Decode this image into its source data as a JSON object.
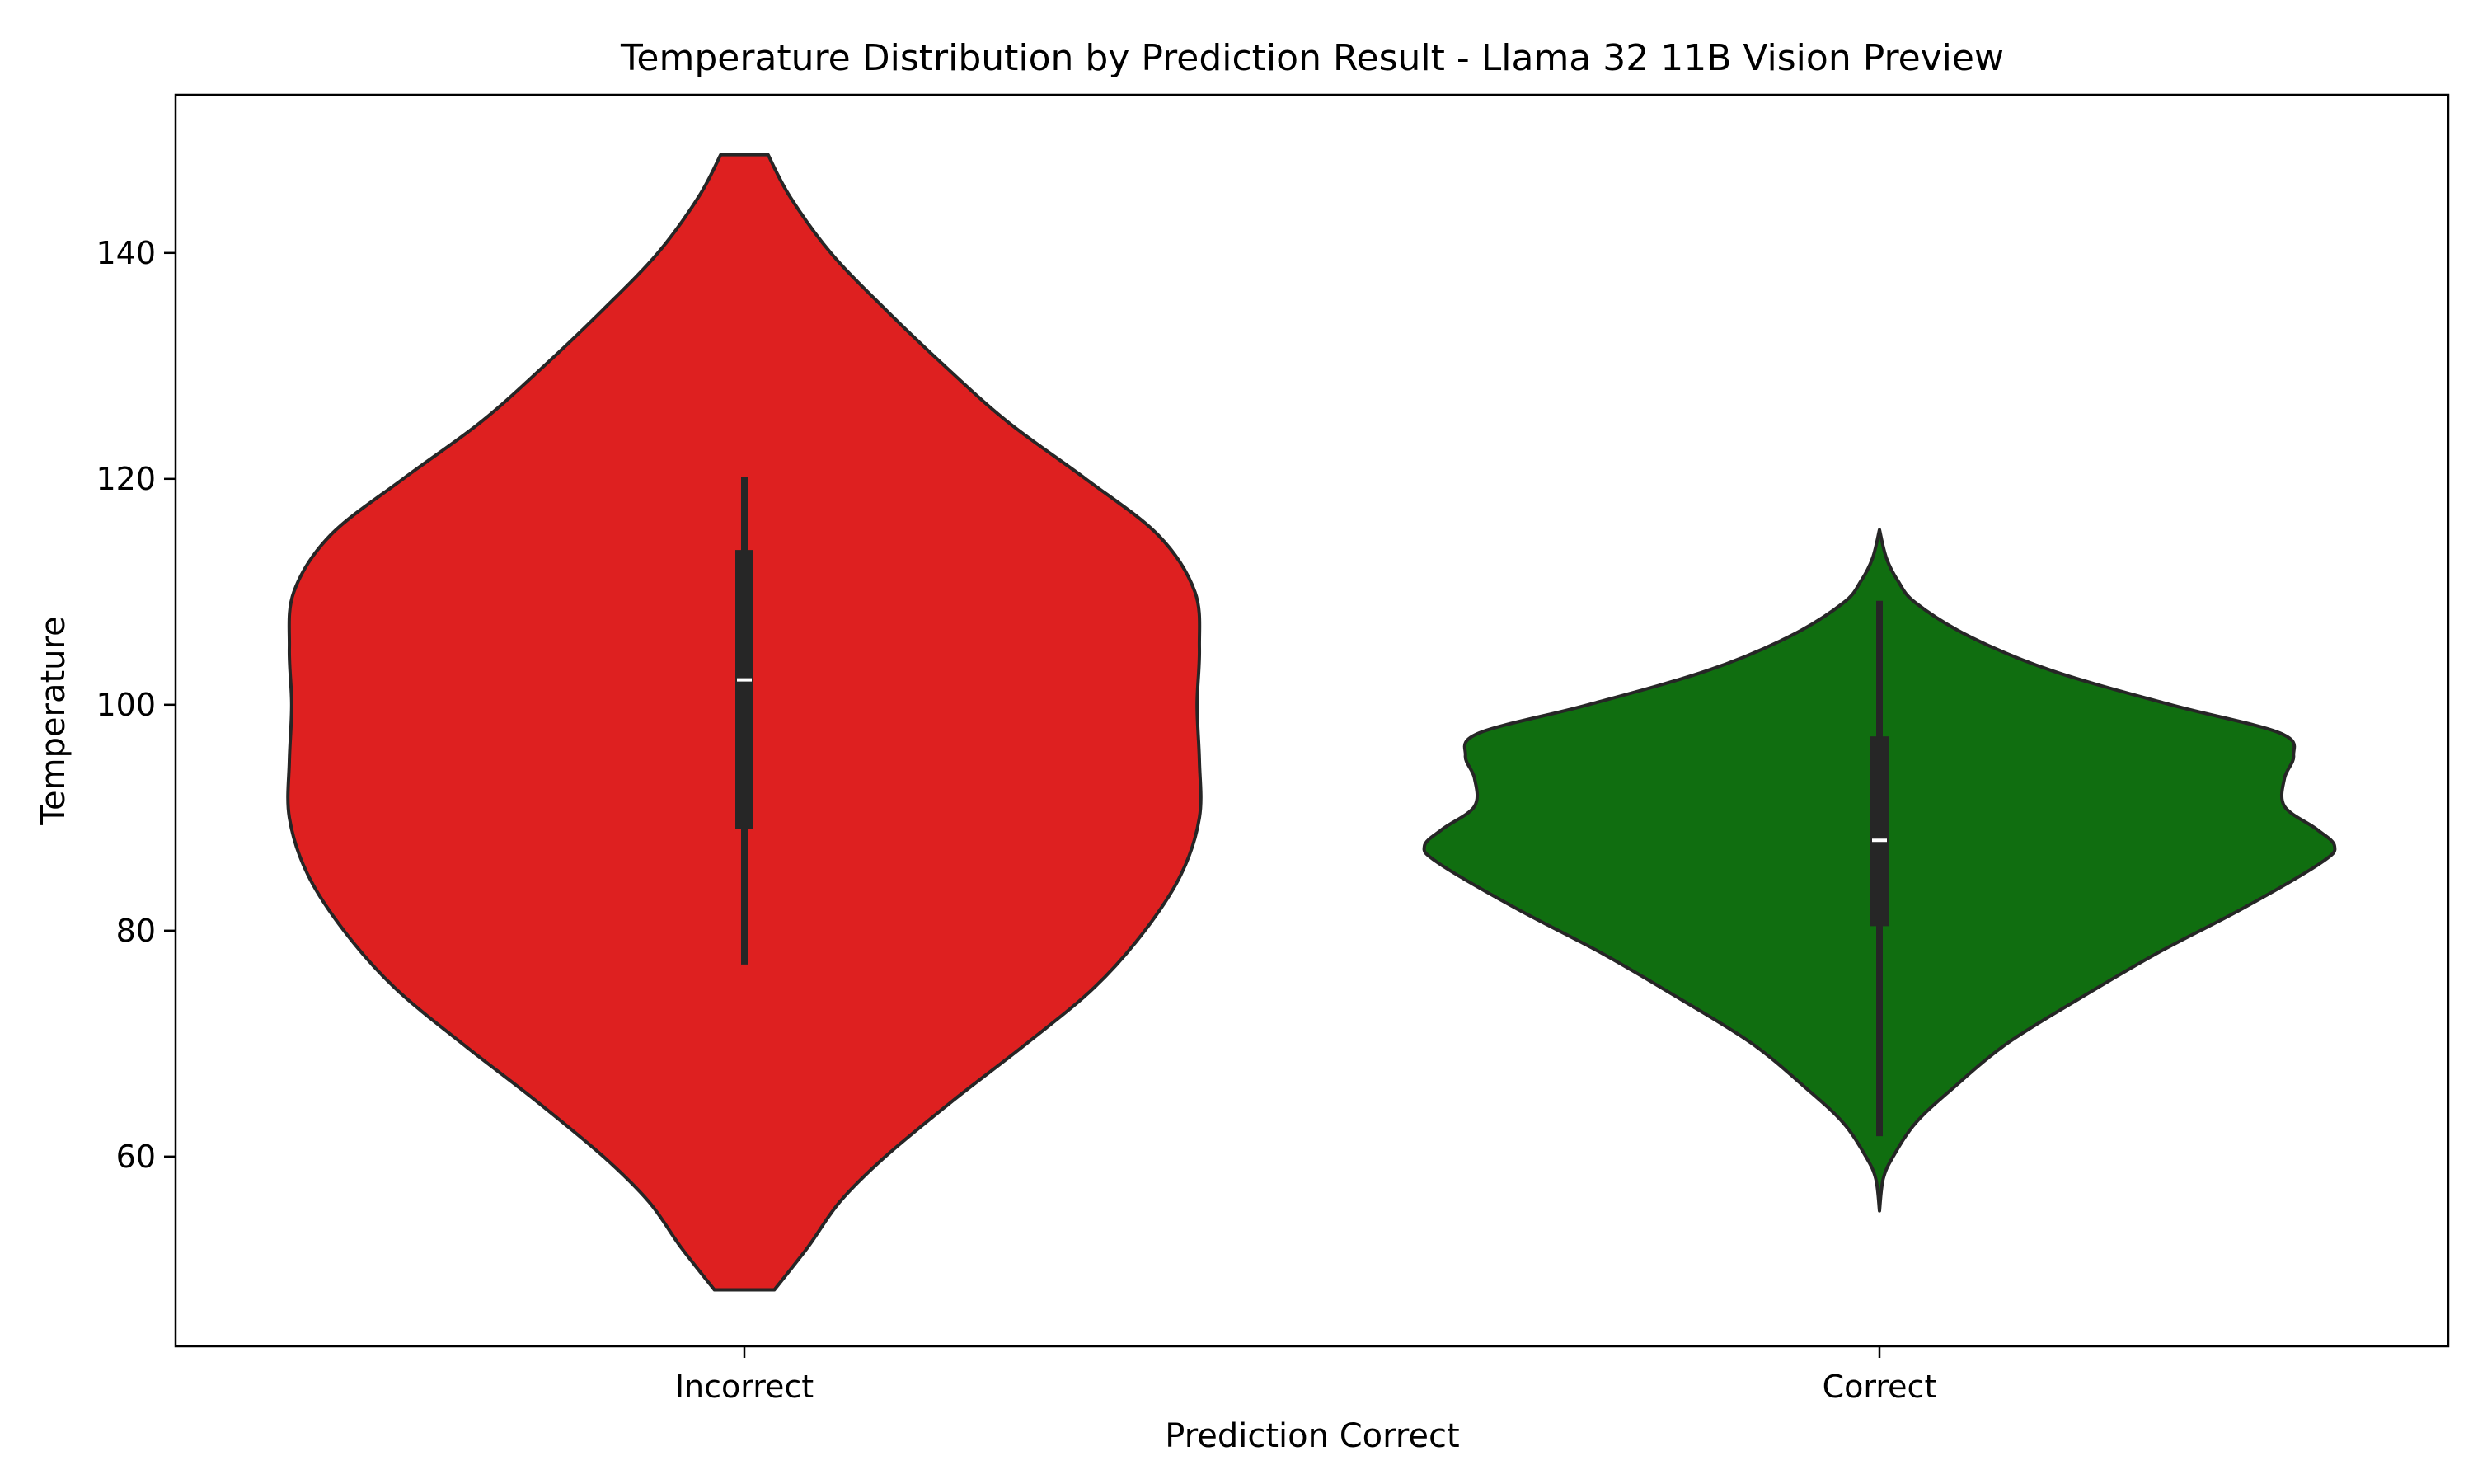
{
  "colors": {
    "background": "#ffffff",
    "edge": "#262626",
    "box": "#262626",
    "median": "#ffffff"
  },
  "chart_data": {
    "type": "violin",
    "title": "Temperature Distribution by Prediction Result - Llama 32 11B Vision Preview",
    "xlabel": "Prediction Correct",
    "ylabel": "Temperature",
    "categories": [
      "Incorrect",
      "Correct"
    ],
    "ylim": [
      43.2,
      154.0
    ],
    "yticks": [
      60,
      80,
      100,
      120,
      140
    ],
    "grid": false,
    "legend": false,
    "series": [
      {
        "category": "Incorrect",
        "color": "#de2020",
        "whisker_low": 77.0,
        "q1": 89.0,
        "median": 102.2,
        "q3": 113.7,
        "whisker_high": 120.2,
        "density": [
          [
            48.2,
            0.066
          ],
          [
            52.0,
            0.14
          ],
          [
            56.0,
            0.21
          ],
          [
            60.0,
            0.31
          ],
          [
            65.0,
            0.46
          ],
          [
            70.0,
            0.62
          ],
          [
            75.0,
            0.77
          ],
          [
            80.0,
            0.88
          ],
          [
            85.0,
            0.96
          ],
          [
            90.0,
            1.0
          ],
          [
            95.0,
            1.0
          ],
          [
            100.0,
            0.995
          ],
          [
            105.0,
            1.0
          ],
          [
            110.0,
            0.99
          ],
          [
            115.0,
            0.91
          ],
          [
            120.0,
            0.75
          ],
          [
            125.0,
            0.58
          ],
          [
            130.0,
            0.44
          ],
          [
            135.0,
            0.31
          ],
          [
            140.0,
            0.19
          ],
          [
            145.0,
            0.1
          ],
          [
            148.7,
            0.052
          ]
        ]
      },
      {
        "category": "Correct",
        "color": "#106e10",
        "whisker_low": 61.8,
        "q1": 80.4,
        "median": 88.0,
        "q3": 97.2,
        "whisker_high": 109.2,
        "density": [
          [
            55.2,
            0.0
          ],
          [
            58.0,
            0.008
          ],
          [
            60.0,
            0.03
          ],
          [
            63.0,
            0.08
          ],
          [
            66.0,
            0.16
          ],
          [
            70.0,
            0.28
          ],
          [
            74.0,
            0.44
          ],
          [
            78.0,
            0.61
          ],
          [
            82.0,
            0.8
          ],
          [
            86.0,
            0.97
          ],
          [
            87.5,
            1.0
          ],
          [
            89.0,
            0.96
          ],
          [
            91.0,
            0.89
          ],
          [
            93.5,
            0.89
          ],
          [
            95.5,
            0.91
          ],
          [
            97.5,
            0.88
          ],
          [
            100.0,
            0.64
          ],
          [
            103.0,
            0.38
          ],
          [
            106.0,
            0.2
          ],
          [
            109.0,
            0.08
          ],
          [
            111.0,
            0.04
          ],
          [
            113.0,
            0.015
          ],
          [
            115.5,
            0.0
          ]
        ]
      }
    ]
  }
}
